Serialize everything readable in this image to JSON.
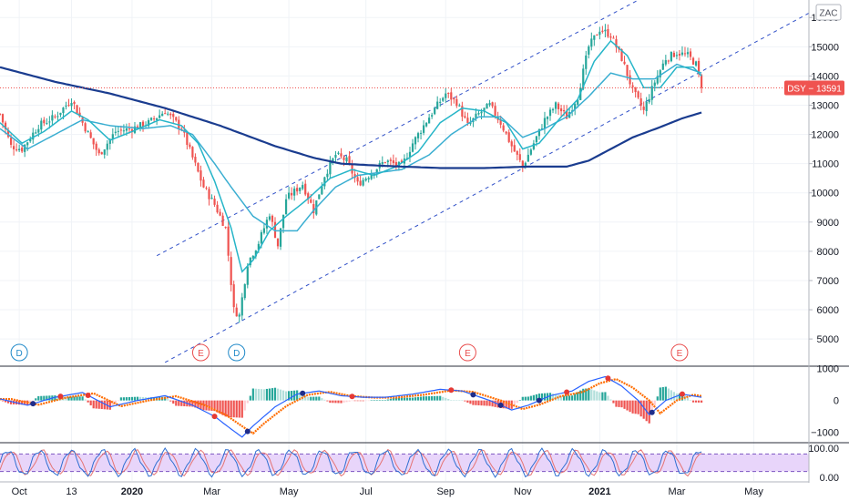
{
  "chart_data": {
    "type": "line",
    "currency": "ZAC",
    "ticker_badge": "DSY − 13591",
    "last_price": 13591,
    "main_y_ticks": [
      5000,
      6000,
      7000,
      8000,
      9000,
      10000,
      11000,
      12000,
      13000,
      14000,
      15000,
      16000
    ],
    "main_ylim": [
      4100,
      16600
    ],
    "x_tick_labels": [
      {
        "label": "Oct",
        "i": 7,
        "bold": false
      },
      {
        "label": "13",
        "i": 26,
        "bold": false
      },
      {
        "label": "2020",
        "i": 48,
        "bold": true
      },
      {
        "label": "Mar",
        "i": 77,
        "bold": false
      },
      {
        "label": "May",
        "i": 105,
        "bold": false
      },
      {
        "label": "Jul",
        "i": 133,
        "bold": false
      },
      {
        "label": "Sep",
        "i": 162,
        "bold": false
      },
      {
        "label": "Nov",
        "i": 190,
        "bold": false
      },
      {
        "label": "2021",
        "i": 218,
        "bold": true
      },
      {
        "label": "Mar",
        "i": 246,
        "bold": false
      },
      {
        "label": "May",
        "i": 274,
        "bold": false
      }
    ],
    "n_bars": 256,
    "price_anchors": [
      [
        0,
        12700
      ],
      [
        4,
        11600
      ],
      [
        8,
        11500
      ],
      [
        14,
        12300
      ],
      [
        20,
        12600
      ],
      [
        26,
        13200
      ],
      [
        30,
        12400
      ],
      [
        36,
        11300
      ],
      [
        42,
        12100
      ],
      [
        48,
        12200
      ],
      [
        54,
        12400
      ],
      [
        60,
        12800
      ],
      [
        66,
        12200
      ],
      [
        70,
        11200
      ],
      [
        74,
        10200
      ],
      [
        78,
        9600
      ],
      [
        82,
        8800
      ],
      [
        85,
        6000
      ],
      [
        87,
        5800
      ],
      [
        90,
        7600
      ],
      [
        94,
        8300
      ],
      [
        98,
        9300
      ],
      [
        101,
        8200
      ],
      [
        104,
        9800
      ],
      [
        110,
        10300
      ],
      [
        114,
        9400
      ],
      [
        118,
        10600
      ],
      [
        122,
        11300
      ],
      [
        126,
        11100
      ],
      [
        130,
        10300
      ],
      [
        134,
        10600
      ],
      [
        140,
        11100
      ],
      [
        146,
        10900
      ],
      [
        150,
        11700
      ],
      [
        156,
        12600
      ],
      [
        162,
        13400
      ],
      [
        166,
        13100
      ],
      [
        170,
        12300
      ],
      [
        174,
        12700
      ],
      [
        178,
        13000
      ],
      [
        182,
        12400
      ],
      [
        186,
        11600
      ],
      [
        190,
        10900
      ],
      [
        194,
        11700
      ],
      [
        198,
        12500
      ],
      [
        202,
        13000
      ],
      [
        206,
        12600
      ],
      [
        210,
        13300
      ],
      [
        214,
        15000
      ],
      [
        218,
        15600
      ],
      [
        222,
        15400
      ],
      [
        226,
        14600
      ],
      [
        230,
        13500
      ],
      [
        234,
        12800
      ],
      [
        238,
        13800
      ],
      [
        242,
        14600
      ],
      [
        246,
        14800
      ],
      [
        250,
        14700
      ],
      [
        253,
        14400
      ],
      [
        255,
        13591
      ]
    ],
    "ma_short_anchors": [
      [
        0,
        12400
      ],
      [
        8,
        11700
      ],
      [
        16,
        12100
      ],
      [
        26,
        12800
      ],
      [
        32,
        12500
      ],
      [
        40,
        11800
      ],
      [
        48,
        12100
      ],
      [
        58,
        12500
      ],
      [
        66,
        12300
      ],
      [
        72,
        11700
      ],
      [
        78,
        10400
      ],
      [
        84,
        8800
      ],
      [
        88,
        7300
      ],
      [
        92,
        7700
      ],
      [
        98,
        8700
      ],
      [
        104,
        9200
      ],
      [
        112,
        9800
      ],
      [
        120,
        10500
      ],
      [
        128,
        10800
      ],
      [
        136,
        10600
      ],
      [
        144,
        10900
      ],
      [
        152,
        11400
      ],
      [
        160,
        12400
      ],
      [
        168,
        12900
      ],
      [
        176,
        12800
      ],
      [
        184,
        12400
      ],
      [
        190,
        11500
      ],
      [
        196,
        11700
      ],
      [
        204,
        12600
      ],
      [
        210,
        13200
      ],
      [
        216,
        14500
      ],
      [
        222,
        15200
      ],
      [
        228,
        14700
      ],
      [
        234,
        13600
      ],
      [
        240,
        13600
      ],
      [
        246,
        14300
      ],
      [
        252,
        14300
      ],
      [
        255,
        14000
      ]
    ],
    "ma_mid_anchors": [
      [
        0,
        12200
      ],
      [
        10,
        11500
      ],
      [
        20,
        12000
      ],
      [
        30,
        12500
      ],
      [
        40,
        12300
      ],
      [
        52,
        12200
      ],
      [
        62,
        12300
      ],
      [
        70,
        12000
      ],
      [
        78,
        11000
      ],
      [
        84,
        10200
      ],
      [
        92,
        9200
      ],
      [
        100,
        8700
      ],
      [
        108,
        8700
      ],
      [
        114,
        9400
      ],
      [
        122,
        10200
      ],
      [
        130,
        10600
      ],
      [
        138,
        10700
      ],
      [
        146,
        10800
      ],
      [
        156,
        11300
      ],
      [
        164,
        12000
      ],
      [
        174,
        12600
      ],
      [
        182,
        12600
      ],
      [
        190,
        11900
      ],
      [
        198,
        12200
      ],
      [
        206,
        12600
      ],
      [
        214,
        13300
      ],
      [
        222,
        14100
      ],
      [
        230,
        13900
      ],
      [
        238,
        13900
      ],
      [
        246,
        14400
      ],
      [
        255,
        14100
      ]
    ],
    "ma_long_anchors": [
      [
        0,
        14300
      ],
      [
        20,
        13800
      ],
      [
        40,
        13400
      ],
      [
        60,
        12900
      ],
      [
        80,
        12300
      ],
      [
        100,
        11600
      ],
      [
        114,
        11200
      ],
      [
        124,
        11000
      ],
      [
        134,
        10950
      ],
      [
        146,
        10900
      ],
      [
        160,
        10850
      ],
      [
        176,
        10850
      ],
      [
        192,
        10900
      ],
      [
        206,
        10900
      ],
      [
        214,
        11100
      ],
      [
        222,
        11500
      ],
      [
        230,
        11900
      ],
      [
        240,
        12250
      ],
      [
        248,
        12550
      ],
      [
        255,
        12750
      ]
    ],
    "channel_top": [
      [
        57,
        7850
      ],
      [
        250,
        17500
      ]
    ],
    "channel_bottom": [
      [
        60,
        4200
      ],
      [
        295,
        16200
      ]
    ],
    "events": [
      {
        "label": "D",
        "i": 7,
        "color": "#1e88c8"
      },
      {
        "label": "E",
        "i": 73,
        "color": "#e94f4f"
      },
      {
        "label": "D",
        "i": 86,
        "color": "#1e88c8"
      },
      {
        "label": "E",
        "i": 170,
        "color": "#e94f4f"
      },
      {
        "label": "E",
        "i": 247,
        "color": "#e94f4f"
      }
    ],
    "macd_y_ticks": [
      1000,
      0,
      -1000
    ],
    "macd_ylim": [
      -1300,
      1050
    ],
    "macd_anchors": [
      [
        0,
        50
      ],
      [
        10,
        -150
      ],
      [
        20,
        100
      ],
      [
        30,
        250
      ],
      [
        40,
        -200
      ],
      [
        50,
        0
      ],
      [
        60,
        150
      ],
      [
        70,
        -150
      ],
      [
        78,
        -500
      ],
      [
        84,
        -900
      ],
      [
        88,
        -1150
      ],
      [
        92,
        -800
      ],
      [
        100,
        -200
      ],
      [
        108,
        200
      ],
      [
        116,
        300
      ],
      [
        124,
        150
      ],
      [
        132,
        100
      ],
      [
        140,
        100
      ],
      [
        150,
        200
      ],
      [
        160,
        350
      ],
      [
        168,
        300
      ],
      [
        178,
        0
      ],
      [
        186,
        -300
      ],
      [
        192,
        -150
      ],
      [
        200,
        150
      ],
      [
        208,
        300
      ],
      [
        214,
        600
      ],
      [
        220,
        750
      ],
      [
        226,
        450
      ],
      [
        232,
        0
      ],
      [
        236,
        -450
      ],
      [
        242,
        0
      ],
      [
        248,
        200
      ],
      [
        255,
        100
      ]
    ],
    "macd_crosses": [
      {
        "i": 12,
        "color": "#1f2d8a"
      },
      {
        "i": 22,
        "color": "#e53935"
      },
      {
        "i": 32,
        "color": "#e53935"
      },
      {
        "i": 78,
        "color": "#e53935"
      },
      {
        "i": 90,
        "color": "#1f2d8a"
      },
      {
        "i": 110,
        "color": "#1f2d8a"
      },
      {
        "i": 128,
        "color": "#e53935"
      },
      {
        "i": 164,
        "color": "#e53935"
      },
      {
        "i": 172,
        "color": "#1f2d8a"
      },
      {
        "i": 182,
        "color": "#1f2d8a"
      },
      {
        "i": 196,
        "color": "#1f2d8a"
      },
      {
        "i": 206,
        "color": "#e53935"
      },
      {
        "i": 221,
        "color": "#e53935"
      },
      {
        "i": 237,
        "color": "#1f2d8a"
      },
      {
        "i": 248,
        "color": "#e53935"
      }
    ],
    "stoch_y_ticks": [
      100,
      0
    ],
    "stoch_y_labels": [
      "100.00",
      "0.00"
    ],
    "stoch_band": [
      20,
      80
    ],
    "colors": {
      "up": "#26a69a",
      "down": "#ef5350",
      "ma_short": "#26b5c8",
      "ma_mid": "#3aaed1",
      "ma_long": "#1a3c8f",
      "channel": "#3050c8",
      "macd_line": "#2962ff",
      "signal_line": "#ff6d00",
      "stoch_k": "#2f6fd1",
      "stoch_d": "#e57373",
      "stoch_band_fill": "#e8d5fa"
    }
  }
}
